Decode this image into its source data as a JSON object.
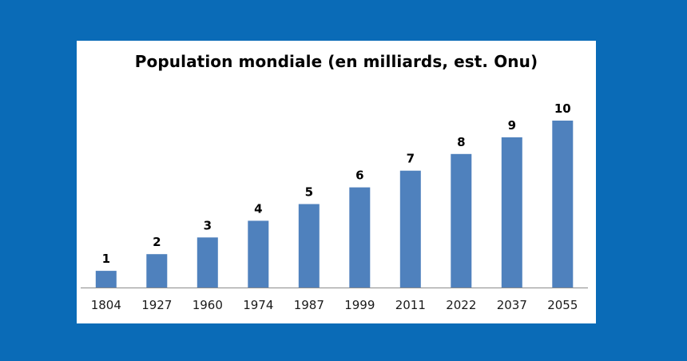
{
  "colors": {
    "background": "#0a6bb7",
    "panel": "#ffffff",
    "bar": "#4f81bd",
    "axis": "#8c8c8c"
  },
  "chart_data": {
    "type": "bar",
    "title": "Population mondiale (en milliards, est. Onu)",
    "xlabel": "",
    "ylabel": "",
    "categories": [
      "1804",
      "1927",
      "1960",
      "1974",
      "1987",
      "1999",
      "2011",
      "2022",
      "2037",
      "2055"
    ],
    "values": [
      1,
      2,
      3,
      4,
      5,
      6,
      7,
      8,
      9,
      10
    ],
    "data_labels": [
      "1",
      "2",
      "3",
      "4",
      "5",
      "6",
      "7",
      "8",
      "9",
      "10"
    ],
    "ylim": [
      0,
      10
    ],
    "grid": false,
    "legend": "none"
  }
}
